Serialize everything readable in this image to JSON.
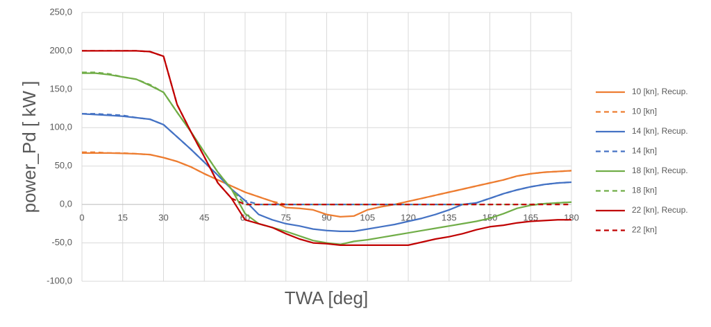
{
  "chart_data": {
    "type": "line",
    "x_label": "TWA [deg]",
    "y_label": "power_Pd [ kW ]",
    "x": [
      0,
      5,
      10,
      15,
      20,
      25,
      30,
      35,
      40,
      45,
      50,
      55,
      60,
      65,
      70,
      75,
      80,
      85,
      90,
      95,
      100,
      105,
      110,
      115,
      120,
      125,
      130,
      135,
      140,
      145,
      150,
      155,
      160,
      165,
      170,
      175,
      180
    ],
    "xlim": [
      0,
      180
    ],
    "xticks": [
      0,
      15,
      30,
      45,
      60,
      75,
      90,
      105,
      120,
      135,
      150,
      165,
      180
    ],
    "ylim": [
      -100,
      250
    ],
    "yticks": [
      {
        "value": -100,
        "label": "-100,0"
      },
      {
        "value": -50,
        "label": "-50,0"
      },
      {
        "value": 0,
        "label": "0,0"
      },
      {
        "value": 50,
        "label": "50,0"
      },
      {
        "value": 100,
        "label": "100,0"
      },
      {
        "value": 150,
        "label": "150,0"
      },
      {
        "value": 200,
        "label": "200,0"
      },
      {
        "value": 250,
        "label": "250,0"
      }
    ],
    "grid": true,
    "legend": "right",
    "series": [
      {
        "name": "10 [kn], Recup.",
        "color": "#ed7d31",
        "dash": false,
        "values": [
          67,
          67,
          67,
          66.5,
          66,
          65,
          61,
          56,
          49,
          40,
          32,
          24,
          16,
          10,
          4,
          -4,
          -5,
          -7,
          -13,
          -16,
          -15,
          -7,
          -3,
          0,
          4,
          8,
          12,
          16,
          20,
          24,
          28,
          32,
          37,
          40,
          42,
          43,
          44
        ]
      },
      {
        "name": "10 [kn]",
        "color": "#ed7d31",
        "dash": true,
        "values": [
          68,
          68,
          67,
          67,
          66,
          65,
          61,
          56,
          49,
          40,
          32,
          24,
          16,
          10,
          4,
          0,
          0,
          0,
          0,
          0,
          0,
          0,
          0,
          0,
          4,
          8,
          12,
          16,
          20,
          24,
          28,
          32,
          37,
          40,
          42,
          43,
          44
        ]
      },
      {
        "name": "14 [kn], Recup.",
        "color": "#4472c4",
        "dash": false,
        "values": [
          118,
          117,
          116,
          115,
          113,
          111,
          104,
          88,
          72,
          55,
          38,
          20,
          5,
          -13,
          -20,
          -25,
          -28,
          -32,
          -34,
          -35,
          -35,
          -32,
          -29,
          -26,
          -22,
          -18,
          -13,
          -7,
          0,
          2,
          8,
          14,
          19,
          23,
          26,
          28,
          29
        ]
      },
      {
        "name": "14 [kn]",
        "color": "#4472c4",
        "dash": true,
        "values": [
          118,
          118,
          117,
          116,
          113,
          111,
          104,
          88,
          72,
          55,
          38,
          20,
          5,
          0,
          0,
          0,
          0,
          0,
          0,
          0,
          0,
          0,
          0,
          0,
          0,
          0,
          0,
          0,
          0,
          2,
          8,
          14,
          19,
          23,
          26,
          28,
          29
        ]
      },
      {
        "name": "18 [kn], Recup.",
        "color": "#70ad47",
        "dash": false,
        "values": [
          171,
          171,
          169,
          166,
          163,
          155,
          146,
          120,
          95,
          68,
          42,
          20,
          -12,
          -25,
          -30,
          -35,
          -41,
          -47,
          -50,
          -52,
          -48,
          -46,
          -43,
          -40,
          -37,
          -34,
          -31,
          -28,
          -25,
          -22,
          -18,
          -12,
          -5,
          -1,
          1,
          2,
          3
        ]
      },
      {
        "name": "18 [kn]",
        "color": "#70ad47",
        "dash": true,
        "values": [
          172,
          172,
          170,
          166,
          163,
          156,
          146,
          120,
          95,
          68,
          42,
          20,
          0,
          0,
          0,
          0,
          0,
          0,
          0,
          0,
          0,
          0,
          0,
          0,
          0,
          0,
          0,
          0,
          0,
          0,
          0,
          0,
          0,
          0,
          1,
          2,
          3
        ]
      },
      {
        "name": "22 [kn], Recup.",
        "color": "#c00000",
        "dash": false,
        "values": [
          200,
          200,
          200,
          200,
          200,
          199,
          193,
          130,
          95,
          62,
          28,
          8,
          -20,
          -25,
          -30,
          -38,
          -45,
          -50,
          -51,
          -53,
          -53,
          -53,
          -53,
          -53,
          -53,
          -49,
          -45,
          -42,
          -38,
          -33,
          -29,
          -27,
          -24,
          -22,
          -21,
          -20,
          -20
        ]
      },
      {
        "name": "22 [kn]",
        "color": "#c00000",
        "dash": true,
        "values": [
          200,
          200,
          200,
          200,
          200,
          199,
          193,
          130,
          95,
          62,
          28,
          8,
          0,
          0,
          0,
          0,
          0,
          0,
          0,
          0,
          0,
          0,
          0,
          0,
          0,
          0,
          0,
          0,
          0,
          0,
          0,
          0,
          0,
          0,
          0,
          0,
          0
        ]
      }
    ]
  }
}
